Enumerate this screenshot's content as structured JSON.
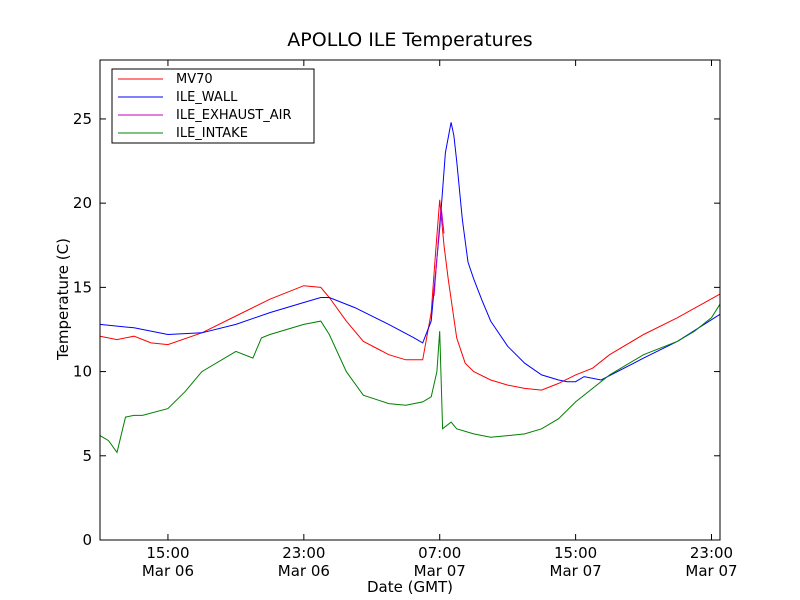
{
  "chart_data": {
    "type": "line",
    "title": "APOLLO ILE Temperatures",
    "xlabel": "Date (GMT)",
    "ylabel": "Temperature (C)",
    "xlim": [
      "2012-03-06 11:00",
      "2012-03-07 23:30"
    ],
    "ylim": [
      0,
      28.5
    ],
    "grid": false,
    "legend_position": "top-left",
    "y_ticks": [
      0,
      5,
      10,
      15,
      20,
      25
    ],
    "x_ticks": [
      {
        "at": "2012-03-06 15:00",
        "time": "15:00",
        "date": "Mar 06"
      },
      {
        "at": "2012-03-06 23:00",
        "time": "23:00",
        "date": "Mar 06"
      },
      {
        "at": "2012-03-07 07:00",
        "time": "07:00",
        "date": "Mar 07"
      },
      {
        "at": "2012-03-07 15:00",
        "time": "15:00",
        "date": "Mar 07"
      },
      {
        "at": "2012-03-07 23:00",
        "time": "23:00",
        "date": "Mar 07"
      }
    ],
    "series": [
      {
        "name": "MV70",
        "color": "#ff0000",
        "x": [
          "2012-03-06 11:00",
          "2012-03-06 12:00",
          "2012-03-06 13:00",
          "2012-03-06 14:00",
          "2012-03-06 15:00",
          "2012-03-06 17:00",
          "2012-03-06 19:00",
          "2012-03-06 21:00",
          "2012-03-06 23:00",
          "2012-03-07 00:00",
          "2012-03-07 00:30",
          "2012-03-07 01:30",
          "2012-03-07 02:30",
          "2012-03-07 04:00",
          "2012-03-07 05:00",
          "2012-03-07 06:00",
          "2012-03-07 06:30",
          "2012-03-07 06:45",
          "2012-03-07 07:00",
          "2012-03-07 07:15",
          "2012-03-07 07:30",
          "2012-03-07 08:00",
          "2012-03-07 08:30",
          "2012-03-07 09:00",
          "2012-03-07 10:00",
          "2012-03-07 11:00",
          "2012-03-07 12:00",
          "2012-03-07 13:00",
          "2012-03-07 14:00",
          "2012-03-07 15:00",
          "2012-03-07 16:00",
          "2012-03-07 17:00",
          "2012-03-07 19:00",
          "2012-03-07 21:00",
          "2012-03-07 23:30"
        ],
        "y": [
          12.1,
          11.9,
          12.1,
          11.7,
          11.6,
          12.3,
          13.3,
          14.3,
          15.1,
          15.0,
          14.4,
          13.0,
          11.8,
          11.0,
          10.7,
          10.7,
          13.5,
          17.0,
          20.2,
          17.5,
          15.5,
          12.0,
          10.5,
          10.0,
          9.5,
          9.2,
          9.0,
          8.9,
          9.3,
          9.8,
          10.2,
          11.0,
          12.2,
          13.2,
          14.6
        ]
      },
      {
        "name": "ILE_WALL",
        "color": "#0000ff",
        "x": [
          "2012-03-06 11:00",
          "2012-03-06 13:00",
          "2012-03-06 15:00",
          "2012-03-06 17:00",
          "2012-03-06 19:00",
          "2012-03-06 21:00",
          "2012-03-06 23:00",
          "2012-03-07 00:00",
          "2012-03-07 00:30",
          "2012-03-07 02:00",
          "2012-03-07 04:00",
          "2012-03-07 05:30",
          "2012-03-07 06:00",
          "2012-03-07 06:30",
          "2012-03-07 07:00",
          "2012-03-07 07:20",
          "2012-03-07 07:40",
          "2012-03-07 07:50",
          "2012-03-07 08:00",
          "2012-03-07 08:20",
          "2012-03-07 08:40",
          "2012-03-07 09:00",
          "2012-03-07 09:30",
          "2012-03-07 10:00",
          "2012-03-07 11:00",
          "2012-03-07 12:00",
          "2012-03-07 13:00",
          "2012-03-07 14:00",
          "2012-03-07 14:30",
          "2012-03-07 15:00",
          "2012-03-07 15:30",
          "2012-03-07 16:30",
          "2012-03-07 19:00",
          "2012-03-07 21:00",
          "2012-03-07 23:30"
        ],
        "y": [
          12.8,
          12.6,
          12.2,
          12.3,
          12.8,
          13.5,
          14.1,
          14.4,
          14.4,
          13.8,
          12.8,
          12.0,
          11.7,
          13.0,
          18.5,
          23.0,
          24.8,
          24.0,
          22.5,
          19.0,
          16.5,
          15.5,
          14.2,
          13.0,
          11.5,
          10.5,
          9.8,
          9.5,
          9.4,
          9.4,
          9.7,
          9.5,
          10.8,
          11.8,
          13.4
        ]
      },
      {
        "name": "ILE_EXHAUST_AIR",
        "color": "#bf00bf",
        "x": [
          "2012-03-07 06:40",
          "2012-03-07 06:55",
          "2012-03-07 07:05",
          "2012-03-07 07:15"
        ],
        "y": [
          14.5,
          17.8,
          19.8,
          18.2
        ]
      },
      {
        "name": "ILE_INTAKE",
        "color": "#008000",
        "x": [
          "2012-03-06 11:00",
          "2012-03-06 11:30",
          "2012-03-06 12:00",
          "2012-03-06 12:30",
          "2012-03-06 13:00",
          "2012-03-06 13:30",
          "2012-03-06 15:00",
          "2012-03-06 16:00",
          "2012-03-06 17:00",
          "2012-03-06 19:00",
          "2012-03-06 20:00",
          "2012-03-06 20:30",
          "2012-03-06 21:00",
          "2012-03-06 23:00",
          "2012-03-07 00:00",
          "2012-03-07 00:30",
          "2012-03-07 01:30",
          "2012-03-07 02:30",
          "2012-03-07 04:00",
          "2012-03-07 05:00",
          "2012-03-07 06:00",
          "2012-03-07 06:30",
          "2012-03-07 06:50",
          "2012-03-07 07:00",
          "2012-03-07 07:10",
          "2012-03-07 07:40",
          "2012-03-07 08:00",
          "2012-03-07 09:00",
          "2012-03-07 10:00",
          "2012-03-07 11:00",
          "2012-03-07 12:00",
          "2012-03-07 13:00",
          "2012-03-07 14:00",
          "2012-03-07 15:00",
          "2012-03-07 17:00",
          "2012-03-07 19:00",
          "2012-03-07 21:00",
          "2012-03-07 22:00",
          "2012-03-07 23:00",
          "2012-03-07 23:30"
        ],
        "y": [
          6.2,
          5.9,
          5.2,
          7.3,
          7.4,
          7.4,
          7.8,
          8.8,
          10.0,
          11.2,
          10.8,
          12.0,
          12.2,
          12.8,
          13.0,
          12.2,
          10.0,
          8.6,
          8.1,
          8.0,
          8.2,
          8.5,
          10.0,
          12.4,
          6.6,
          7.0,
          6.6,
          6.3,
          6.1,
          6.2,
          6.3,
          6.6,
          7.2,
          8.2,
          9.8,
          11.0,
          11.8,
          12.4,
          13.2,
          14.0
        ]
      }
    ]
  }
}
